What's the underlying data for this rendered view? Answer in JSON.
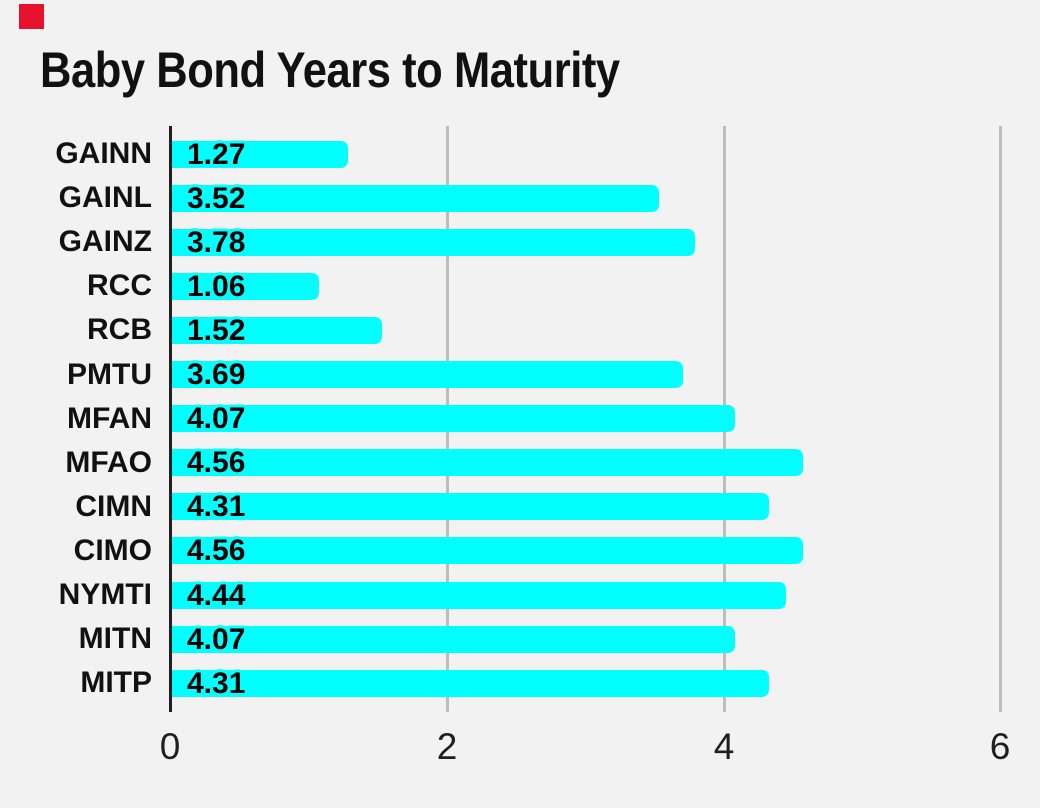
{
  "window": {
    "background_color": "#f2f2f2"
  },
  "recording_indicator": {
    "color": "#e8112d"
  },
  "chart_data": {
    "type": "bar",
    "orientation": "horizontal",
    "title": "Baby Bond Years to Maturity",
    "categories": [
      "GAINN",
      "GAINL",
      "GAINZ",
      "RCC",
      "RCB",
      "PMTU",
      "MFAN",
      "MFAO",
      "CIMN",
      "CIMO",
      "NYMTI",
      "MITN",
      "MITP"
    ],
    "values": [
      1.27,
      3.52,
      3.78,
      1.06,
      1.52,
      3.69,
      4.07,
      4.56,
      4.31,
      4.56,
      4.44,
      4.07,
      4.31
    ],
    "value_labels": [
      "1.27",
      "3.52",
      "3.78",
      "1.06",
      "1.52",
      "3.69",
      "4.07",
      "4.56",
      "4.31",
      "4.56",
      "4.44",
      "4.07",
      "4.31"
    ],
    "xlabel": "",
    "ylabel": "",
    "xlim": [
      0,
      6
    ],
    "xticks": [
      0,
      2,
      4,
      6
    ],
    "xtick_labels": [
      "0",
      "2",
      "4",
      "6"
    ],
    "grid": "vertical-gridlines-at-ticks",
    "legend": "none",
    "bar_color": "#00ffff",
    "grid_color": "#bdbdbd",
    "axis_color": "#1f1f1f",
    "text_color": "#111111"
  }
}
